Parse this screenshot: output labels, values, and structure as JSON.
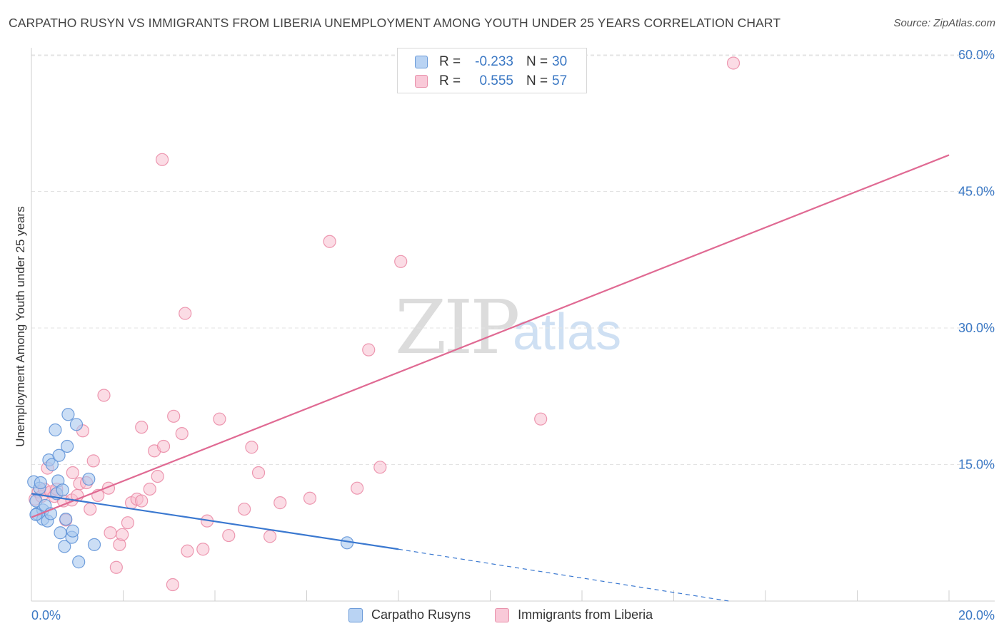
{
  "header": {
    "title": "CARPATHO RUSYN VS IMMIGRANTS FROM LIBERIA UNEMPLOYMENT AMONG YOUTH UNDER 25 YEARS CORRELATION CHART",
    "source": "Source: ZipAtlas.com"
  },
  "watermark": {
    "zip": "ZIP",
    "atlas": "atlas"
  },
  "legend": {
    "rows": [
      {
        "r_label": "R =",
        "r_value": "-0.233",
        "n_label": "N =",
        "n_value": "30"
      },
      {
        "r_label": "R =",
        "r_value": "0.555",
        "n_label": "N =",
        "n_value": "57"
      }
    ]
  },
  "chart_data": {
    "type": "scatter",
    "title": "CARPATHO RUSYN VS IMMIGRANTS FROM LIBERIA UNEMPLOYMENT AMONG YOUTH UNDER 25 YEARS CORRELATION CHART",
    "xlabel": "",
    "ylabel": "Unemployment Among Youth under 25 years",
    "xlim": [
      0,
      20
    ],
    "ylim": [
      0,
      61.5
    ],
    "x_tick_labels": [
      "0.0%",
      "20.0%"
    ],
    "y_ticks": [
      15,
      30,
      45,
      60
    ],
    "y_tick_labels": [
      "15.0%",
      "30.0%",
      "45.0%",
      "60.0%"
    ],
    "colors": {
      "series1_fill": "#a9c8ef",
      "series1_stroke": "#5b8fd6",
      "series1_line": "#3a78d0",
      "series2_fill": "#f7bfd0",
      "series2_stroke": "#e8819f",
      "series2_line": "#e06a93",
      "tick_label": "#3b78c4",
      "grid": "#e3e3e3"
    },
    "series": [
      {
        "name": "Carpatho Rusyns",
        "points": [
          [
            0.05,
            13.1
          ],
          [
            0.1,
            11.0
          ],
          [
            0.12,
            9.6
          ],
          [
            0.18,
            12.4
          ],
          [
            0.2,
            13.0
          ],
          [
            0.25,
            10.0
          ],
          [
            0.25,
            9.0
          ],
          [
            0.3,
            10.5
          ],
          [
            0.35,
            8.8
          ],
          [
            0.38,
            15.5
          ],
          [
            0.42,
            9.6
          ],
          [
            0.45,
            15.0
          ],
          [
            0.52,
            18.8
          ],
          [
            0.55,
            11.8
          ],
          [
            0.58,
            13.2
          ],
          [
            0.6,
            16.0
          ],
          [
            0.63,
            7.5
          ],
          [
            0.68,
            12.2
          ],
          [
            0.72,
            6.0
          ],
          [
            0.75,
            9.0
          ],
          [
            0.78,
            17.0
          ],
          [
            0.8,
            20.5
          ],
          [
            0.88,
            7.0
          ],
          [
            0.9,
            7.7
          ],
          [
            0.98,
            19.4
          ],
          [
            1.03,
            4.3
          ],
          [
            1.25,
            13.4
          ],
          [
            1.37,
            6.2
          ],
          [
            6.88,
            6.4
          ],
          [
            0.1,
            9.5
          ]
        ],
        "trend": {
          "x": [
            0,
            8
          ],
          "y": [
            11.8,
            5.7
          ]
        },
        "trend_extension": {
          "x": [
            8,
            15.2
          ],
          "y": [
            5.7,
            0.0
          ]
        }
      },
      {
        "name": "Immigrants from Liberia",
        "points": [
          [
            0.08,
            11.2
          ],
          [
            0.15,
            12.0
          ],
          [
            0.22,
            11.5
          ],
          [
            0.28,
            12.3
          ],
          [
            0.35,
            14.6
          ],
          [
            0.42,
            12.0
          ],
          [
            0.5,
            11.5
          ],
          [
            0.55,
            12.3
          ],
          [
            0.7,
            11.0
          ],
          [
            0.75,
            8.9
          ],
          [
            0.88,
            11.1
          ],
          [
            0.9,
            14.1
          ],
          [
            1.0,
            11.6
          ],
          [
            1.05,
            12.9
          ],
          [
            1.12,
            18.7
          ],
          [
            1.2,
            13.0
          ],
          [
            1.28,
            10.1
          ],
          [
            1.35,
            15.4
          ],
          [
            1.45,
            11.6
          ],
          [
            1.58,
            22.6
          ],
          [
            1.68,
            12.4
          ],
          [
            1.72,
            7.5
          ],
          [
            1.85,
            3.7
          ],
          [
            1.92,
            6.2
          ],
          [
            1.98,
            7.3
          ],
          [
            2.1,
            8.6
          ],
          [
            2.18,
            10.8
          ],
          [
            2.3,
            11.2
          ],
          [
            2.4,
            11.0
          ],
          [
            2.4,
            19.1
          ],
          [
            2.58,
            12.3
          ],
          [
            2.68,
            16.5
          ],
          [
            2.75,
            13.7
          ],
          [
            2.85,
            48.5
          ],
          [
            2.88,
            17.0
          ],
          [
            3.08,
            1.8
          ],
          [
            3.1,
            20.3
          ],
          [
            3.28,
            18.4
          ],
          [
            3.35,
            31.6
          ],
          [
            3.4,
            5.5
          ],
          [
            3.74,
            5.7
          ],
          [
            3.83,
            8.8
          ],
          [
            4.1,
            20.0
          ],
          [
            4.3,
            7.2
          ],
          [
            4.64,
            10.1
          ],
          [
            4.8,
            16.9
          ],
          [
            4.95,
            14.1
          ],
          [
            5.2,
            7.1
          ],
          [
            5.42,
            10.8
          ],
          [
            6.07,
            11.3
          ],
          [
            6.5,
            39.5
          ],
          [
            7.1,
            12.4
          ],
          [
            7.35,
            27.6
          ],
          [
            7.6,
            14.7
          ],
          [
            8.05,
            37.3
          ],
          [
            11.1,
            20.0
          ],
          [
            15.3,
            59.1
          ]
        ],
        "trend": {
          "x": [
            0,
            20
          ],
          "y": [
            9.2,
            49.0
          ]
        }
      }
    ]
  },
  "bottom_legend": {
    "items": [
      {
        "label": "Carpatho Rusyns"
      },
      {
        "label": "Immigrants from Liberia"
      }
    ]
  }
}
